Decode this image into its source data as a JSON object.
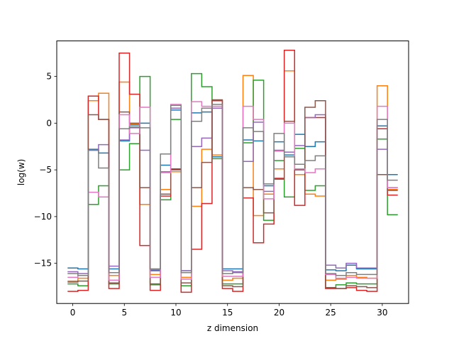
{
  "chart_data": {
    "type": "line",
    "drawstyle": "steps-mid",
    "xlabel": "z dimension",
    "ylabel": "log(w)",
    "xlim": [
      -1.55,
      32.55
    ],
    "ylim": [
      -19.3,
      8.8
    ],
    "xticks": [
      0,
      5,
      10,
      15,
      20,
      25,
      30
    ],
    "yticks": [
      -15,
      -10,
      -5,
      0,
      5
    ],
    "grid": false,
    "legend": "none",
    "x": [
      0,
      1,
      2,
      3,
      4,
      5,
      6,
      7,
      8,
      9,
      10,
      11,
      12,
      13,
      14,
      15,
      16,
      17,
      18,
      19,
      20,
      21,
      22,
      23,
      24,
      25,
      26,
      27,
      28,
      29,
      30,
      31
    ],
    "series": [
      {
        "color": "#1f77b4",
        "values": [
          -15.5,
          -15.6,
          -2.8,
          -3.2,
          -15.6,
          -1.9,
          -0.2,
          0.0,
          -15.8,
          -4.5,
          1.4,
          -15.8,
          1.1,
          1.2,
          -3.6,
          -15.6,
          -15.6,
          -1.8,
          -1.9,
          -6.7,
          -2.0,
          -3.4,
          -1.2,
          -2.5,
          -2.0,
          -15.7,
          -15.8,
          -15.2,
          -15.6,
          -15.6,
          -0.3,
          -5.5
        ]
      },
      {
        "color": "#ff7f0e",
        "values": [
          -16.9,
          -16.6,
          2.4,
          3.2,
          -16.3,
          4.4,
          -0.1,
          -8.7,
          -16.2,
          -7.1,
          -5.2,
          -16.5,
          -8.9,
          -2.8,
          -3.4,
          -16.8,
          -16.6,
          5.1,
          -9.9,
          -7.6,
          -4.9,
          5.6,
          -5.5,
          -7.6,
          -7.8,
          -16.8,
          -16.7,
          -16.3,
          -16.5,
          -16.6,
          4.0,
          -7.1
        ]
      },
      {
        "color": "#2ca02c",
        "values": [
          -17.2,
          -17.4,
          -8.7,
          -6.7,
          -17.2,
          -5.0,
          -2.2,
          5.0,
          -17.3,
          -8.2,
          0.4,
          -17.4,
          5.3,
          3.9,
          -3.8,
          -17.2,
          -17.2,
          -2.1,
          4.6,
          -10.4,
          -4.0,
          -7.9,
          -2.7,
          -7.2,
          -6.7,
          -17.6,
          -17.3,
          -17.1,
          -17.2,
          -17.2,
          -1.7,
          -9.8
        ]
      },
      {
        "color": "#d62728",
        "values": [
          -18.0,
          -17.9,
          2.9,
          0.4,
          -17.7,
          7.5,
          3.1,
          -13.1,
          -17.9,
          -7.8,
          -4.9,
          -18.1,
          -13.5,
          -8.6,
          2.4,
          -17.7,
          -18.0,
          -8.0,
          -12.8,
          -10.8,
          -5.9,
          7.8,
          -8.8,
          0.6,
          0.6,
          -17.7,
          -17.7,
          -17.6,
          -17.9,
          -18.0,
          -0.6,
          -7.7
        ]
      },
      {
        "color": "#9467bd",
        "values": [
          -15.9,
          -16.1,
          -2.9,
          -2.3,
          -15.3,
          -1.8,
          -0.5,
          -2.9,
          -15.7,
          -5.2,
          1.6,
          -15.8,
          -2.5,
          -1.6,
          1.6,
          -15.8,
          -15.9,
          -4.1,
          0.1,
          -7.3,
          -2.9,
          -3.1,
          -2.4,
          0.6,
          0.9,
          -15.2,
          -15.5,
          -15.0,
          -15.5,
          -15.5,
          -2.8,
          -6.9
        ]
      },
      {
        "color": "#8c564b",
        "values": [
          -17.0,
          -16.9,
          0.9,
          0.4,
          -17.1,
          1.2,
          0.0,
          -6.9,
          -17.2,
          -7.6,
          -5.0,
          -17.1,
          -6.9,
          -4.2,
          2.5,
          -17.4,
          -17.5,
          -6.9,
          -7.1,
          -9.6,
          -6.0,
          0.2,
          -5.0,
          1.7,
          2.4,
          -17.6,
          -17.7,
          -17.4,
          -17.5,
          -17.6,
          -5.5,
          -7.2
        ]
      },
      {
        "color": "#e377c2",
        "values": [
          -16.5,
          -16.3,
          -7.4,
          -7.9,
          -16.8,
          0.9,
          -1.1,
          1.7,
          -16.5,
          -5.3,
          2.0,
          -16.7,
          2.3,
          1.8,
          1.8,
          -16.4,
          -16.4,
          1.8,
          0.4,
          -8.1,
          -3.0,
          0.0,
          -4.9,
          -5.3,
          -4.9,
          -16.2,
          -16.6,
          -16.5,
          -16.6,
          -16.6,
          1.8,
          -6.9
        ]
      },
      {
        "color": "#7f7f7f",
        "values": [
          -16.1,
          -16.3,
          -2.9,
          -4.8,
          -16.0,
          -0.6,
          -0.4,
          -0.5,
          -15.6,
          -3.3,
          1.9,
          -16.0,
          0.2,
          1.6,
          2.0,
          -16.1,
          -16.0,
          -0.5,
          -0.9,
          -6.5,
          -1.1,
          -3.6,
          -4.4,
          -4.0,
          -3.5,
          -16.1,
          -16.3,
          -16.0,
          -16.2,
          -16.2,
          0.4,
          -6.1
        ]
      }
    ]
  }
}
